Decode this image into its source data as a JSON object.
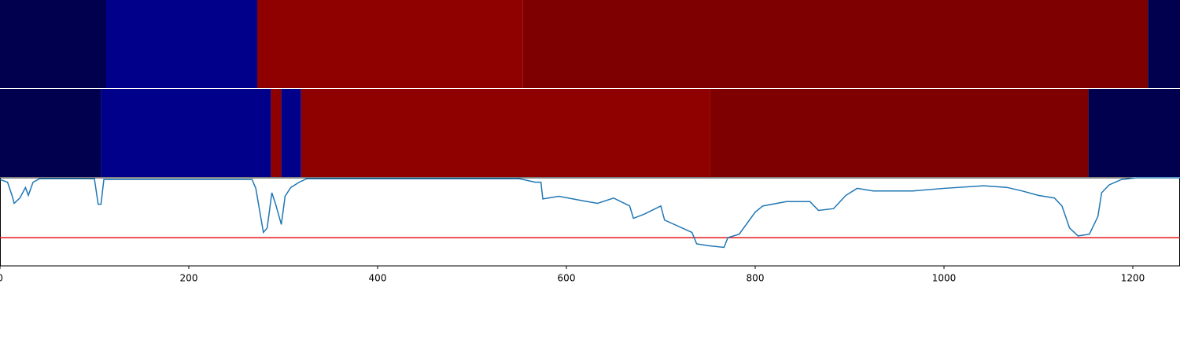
{
  "chart_data": {
    "type": "line",
    "xlim": [
      0,
      1250
    ],
    "xticks": [
      0,
      200,
      400,
      600,
      800,
      1000,
      1200
    ],
    "ylim": [
      0,
      1
    ],
    "threshold": 0.32,
    "threshold_color": "#e41a1c",
    "bands": [
      {
        "segments": [
          {
            "start": 0,
            "end": 112.5,
            "color": "#00004f"
          },
          {
            "start": 112.5,
            "end": 272.5,
            "color": "#00008b"
          },
          {
            "start": 272.5,
            "end": 554,
            "color": "#8f0000"
          },
          {
            "start": 554,
            "end": 1216,
            "color": "#7f0000"
          },
          {
            "start": 1216,
            "end": 1250,
            "color": "#00004f"
          }
        ]
      },
      {
        "segments": [
          {
            "start": 0,
            "end": 107,
            "color": "#00004f"
          },
          {
            "start": 107,
            "end": 287,
            "color": "#00008b"
          },
          {
            "start": 287,
            "end": 298,
            "color": "#8f0000"
          },
          {
            "start": 298,
            "end": 319,
            "color": "#00008b"
          },
          {
            "start": 319,
            "end": 752,
            "color": "#8f0000"
          },
          {
            "start": 752,
            "end": 1153,
            "color": "#7f0000"
          },
          {
            "start": 1153,
            "end": 1250,
            "color": "#00004f"
          }
        ]
      }
    ],
    "series": [
      {
        "color": "#1f77b4",
        "x": [
          0,
          8,
          13,
          15,
          21,
          27,
          30,
          35,
          42,
          100,
          104,
          107,
          110,
          267,
          271,
          275,
          279,
          283,
          288,
          292,
          298,
          302,
          308,
          317,
          325,
          550,
          567,
          573,
          575,
          592,
          617,
          633,
          650,
          667,
          671,
          683,
          700,
          704,
          733,
          738,
          750,
          767,
          771,
          783,
          800,
          808,
          833,
          858,
          867,
          883,
          896,
          908,
          925,
          967,
          1000,
          1042,
          1067,
          1083,
          1100,
          1117,
          1125,
          1133,
          1142,
          1154,
          1163,
          1167,
          1175,
          1188,
          1204,
          1250
        ],
        "values": [
          0.98,
          0.95,
          0.79,
          0.71,
          0.77,
          0.89,
          0.8,
          0.95,
          0.99,
          0.99,
          0.7,
          0.7,
          0.98,
          0.98,
          0.88,
          0.63,
          0.38,
          0.43,
          0.83,
          0.7,
          0.47,
          0.79,
          0.89,
          0.95,
          0.99,
          0.99,
          0.95,
          0.95,
          0.76,
          0.79,
          0.74,
          0.71,
          0.77,
          0.68,
          0.54,
          0.59,
          0.68,
          0.52,
          0.38,
          0.25,
          0.23,
          0.21,
          0.32,
          0.36,
          0.61,
          0.68,
          0.73,
          0.73,
          0.63,
          0.65,
          0.8,
          0.88,
          0.85,
          0.85,
          0.88,
          0.91,
          0.89,
          0.85,
          0.8,
          0.77,
          0.68,
          0.43,
          0.34,
          0.36,
          0.56,
          0.83,
          0.92,
          0.98,
          1.0,
          1.0
        ]
      }
    ]
  }
}
